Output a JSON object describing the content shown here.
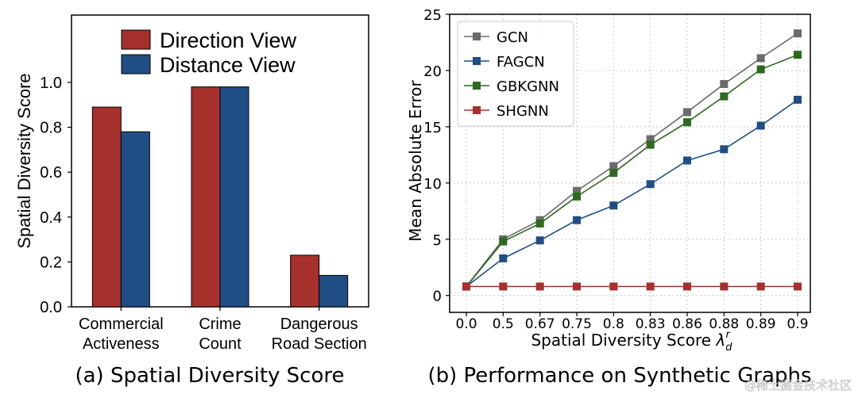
{
  "chart_data": [
    {
      "type": "bar",
      "caption": "(a) Spatial Diversity Score",
      "categories": [
        [
          "Commercial",
          "Activeness"
        ],
        [
          "Crime",
          "Count"
        ],
        [
          "Dangerous",
          "Road Section"
        ]
      ],
      "series": [
        {
          "name": "Direction View",
          "color": "#a5302c",
          "values": [
            0.89,
            0.98,
            0.23
          ]
        },
        {
          "name": "Distance View",
          "color": "#1f4e85",
          "values": [
            0.78,
            0.98,
            0.14
          ]
        }
      ],
      "ylabel": "Spatial Diversity Score",
      "yticks": [
        "0.0",
        "0.2",
        "0.4",
        "0.6",
        "0.8",
        "1.0"
      ],
      "ylim": [
        0,
        1.3
      ],
      "legend": "top-center",
      "grid": false
    },
    {
      "type": "line",
      "caption": "(b) Performance on Synthetic Graphs",
      "x": [
        "0.0",
        "0.5",
        "0.67",
        "0.75",
        "0.8",
        "0.83",
        "0.86",
        "0.88",
        "0.89",
        "0.9"
      ],
      "series": [
        {
          "name": "GCN",
          "color": "#6b6b6b",
          "values": [
            0.8,
            5.0,
            6.7,
            9.3,
            11.5,
            13.9,
            16.3,
            18.8,
            21.1,
            23.3
          ]
        },
        {
          "name": "FAGCN",
          "color": "#1f4e85",
          "values": [
            0.8,
            3.3,
            4.9,
            6.7,
            8.0,
            9.9,
            12.0,
            13.0,
            15.1,
            17.4
          ]
        },
        {
          "name": "GBKGNN",
          "color": "#2c6a1e",
          "values": [
            0.8,
            4.8,
            6.4,
            8.8,
            10.9,
            13.4,
            15.4,
            17.7,
            20.1,
            21.4
          ]
        },
        {
          "name": "SHGNN",
          "color": "#a5302c",
          "values": [
            0.8,
            0.8,
            0.8,
            0.8,
            0.8,
            0.8,
            0.8,
            0.8,
            0.8,
            0.8
          ]
        }
      ],
      "xlabel": "Spatial Diversity Score",
      "xlabel_symbol": "λ",
      "xlabel_sub": "d",
      "xlabel_sup": "r",
      "ylabel": "Mean Absolute Error",
      "yticks": [
        "0",
        "5",
        "10",
        "15",
        "20",
        "25"
      ],
      "ylim": [
        -1.5,
        25
      ],
      "legend": "top-left",
      "grid": true
    }
  ],
  "watermark": "@稀土掘金技术社区"
}
